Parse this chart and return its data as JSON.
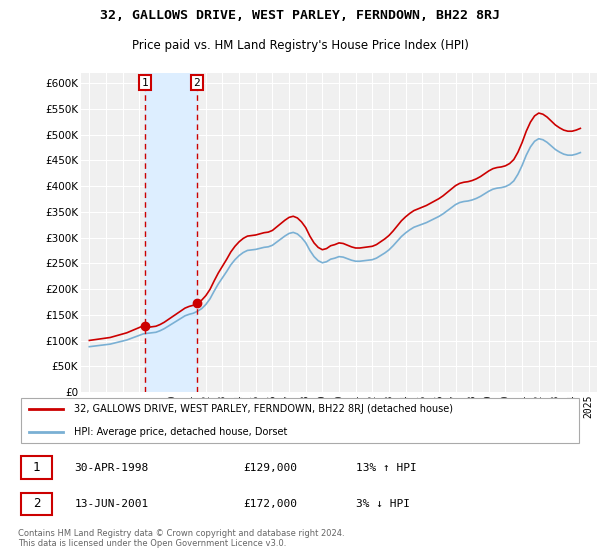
{
  "title": "32, GALLOWS DRIVE, WEST PARLEY, FERNDOWN, BH22 8RJ",
  "subtitle": "Price paid vs. HM Land Registry's House Price Index (HPI)",
  "ylabel_ticks": [
    "£0",
    "£50K",
    "£100K",
    "£150K",
    "£200K",
    "£250K",
    "£300K",
    "£350K",
    "£400K",
    "£450K",
    "£500K",
    "£550K",
    "£600K"
  ],
  "ytick_values": [
    0,
    50000,
    100000,
    150000,
    200000,
    250000,
    300000,
    350000,
    400000,
    450000,
    500000,
    550000,
    600000
  ],
  "xlim": [
    1994.5,
    2025.5
  ],
  "ylim": [
    0,
    620000
  ],
  "background_color": "#ffffff",
  "plot_bg_color": "#f0f0f0",
  "grid_color": "#ffffff",
  "shade_color": "#ddeeff",
  "sale1_year": 1998.33,
  "sale1_price": 129000,
  "sale2_year": 2001.45,
  "sale2_price": 172000,
  "sale1_date": "30-APR-1998",
  "sale1_hpi": "13% ↑ HPI",
  "sale2_date": "13-JUN-2001",
  "sale2_hpi": "3% ↓ HPI",
  "hpi_line_color": "#7ab0d4",
  "sale_line_color": "#cc0000",
  "marker_color": "#cc0000",
  "legend_label1": "32, GALLOWS DRIVE, WEST PARLEY, FERNDOWN, BH22 8RJ (detached house)",
  "legend_label2": "HPI: Average price, detached house, Dorset",
  "footnote": "Contains HM Land Registry data © Crown copyright and database right 2024.\nThis data is licensed under the Open Government Licence v3.0.",
  "hpi_x": [
    1995,
    1995.25,
    1995.5,
    1995.75,
    1996,
    1996.25,
    1996.5,
    1996.75,
    1997,
    1997.25,
    1997.5,
    1997.75,
    1998,
    1998.25,
    1998.5,
    1998.75,
    1999,
    1999.25,
    1999.5,
    1999.75,
    2000,
    2000.25,
    2000.5,
    2000.75,
    2001,
    2001.25,
    2001.5,
    2001.75,
    2002,
    2002.25,
    2002.5,
    2002.75,
    2003,
    2003.25,
    2003.5,
    2003.75,
    2004,
    2004.25,
    2004.5,
    2004.75,
    2005,
    2005.25,
    2005.5,
    2005.75,
    2006,
    2006.25,
    2006.5,
    2006.75,
    2007,
    2007.25,
    2007.5,
    2007.75,
    2008,
    2008.25,
    2008.5,
    2008.75,
    2009,
    2009.25,
    2009.5,
    2009.75,
    2010,
    2010.25,
    2010.5,
    2010.75,
    2011,
    2011.25,
    2011.5,
    2011.75,
    2012,
    2012.25,
    2012.5,
    2012.75,
    2013,
    2013.25,
    2013.5,
    2013.75,
    2014,
    2014.25,
    2014.5,
    2014.75,
    2015,
    2015.25,
    2015.5,
    2015.75,
    2016,
    2016.25,
    2016.5,
    2016.75,
    2017,
    2017.25,
    2017.5,
    2017.75,
    2018,
    2018.25,
    2018.5,
    2018.75,
    2019,
    2019.25,
    2019.5,
    2019.75,
    2020,
    2020.25,
    2020.5,
    2020.75,
    2021,
    2021.25,
    2021.5,
    2021.75,
    2022,
    2022.25,
    2022.5,
    2022.75,
    2023,
    2023.25,
    2023.5,
    2023.75,
    2024,
    2024.25,
    2024.5
  ],
  "hpi_y": [
    88000,
    89000,
    90000,
    91000,
    92000,
    93000,
    95000,
    97000,
    99000,
    101000,
    104000,
    107000,
    110000,
    113000,
    114000,
    115000,
    116000,
    119000,
    123000,
    128000,
    133000,
    138000,
    143000,
    148000,
    151000,
    153000,
    157000,
    162000,
    170000,
    181000,
    196000,
    210000,
    222000,
    234000,
    247000,
    257000,
    265000,
    271000,
    275000,
    276000,
    277000,
    279000,
    281000,
    282000,
    285000,
    291000,
    297000,
    303000,
    308000,
    310000,
    307000,
    300000,
    290000,
    275000,
    263000,
    255000,
    251000,
    253000,
    258000,
    260000,
    263000,
    262000,
    259000,
    256000,
    254000,
    254000,
    255000,
    256000,
    257000,
    260000,
    265000,
    270000,
    276000,
    284000,
    293000,
    302000,
    309000,
    315000,
    320000,
    323000,
    326000,
    329000,
    333000,
    337000,
    341000,
    346000,
    352000,
    358000,
    364000,
    368000,
    370000,
    371000,
    373000,
    376000,
    380000,
    385000,
    390000,
    394000,
    396000,
    397000,
    399000,
    403000,
    410000,
    423000,
    440000,
    460000,
    476000,
    487000,
    492000,
    490000,
    485000,
    478000,
    471000,
    466000,
    462000,
    460000,
    460000,
    462000,
    465000
  ],
  "xtick_years": [
    1995,
    1996,
    1997,
    1998,
    1999,
    2000,
    2001,
    2002,
    2003,
    2004,
    2005,
    2006,
    2007,
    2008,
    2009,
    2010,
    2011,
    2012,
    2013,
    2014,
    2015,
    2016,
    2017,
    2018,
    2019,
    2020,
    2021,
    2022,
    2023,
    2024,
    2025
  ]
}
